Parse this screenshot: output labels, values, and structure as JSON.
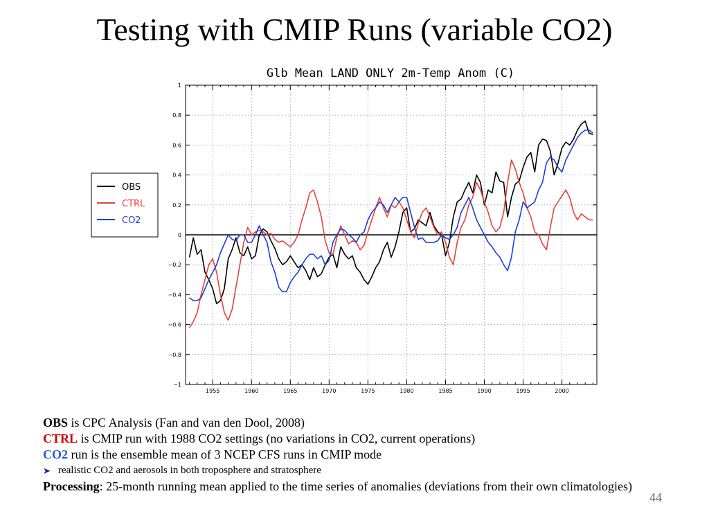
{
  "slide": {
    "title": "Testing with CMIP Runs (variable CO2)",
    "page_number": "44"
  },
  "notes": {
    "obs_term": "OBS",
    "obs_text": " is CPC Analysis (Fan and van den Dool, 2008)",
    "ctrl_term": "CTRL",
    "ctrl_text": " is CMIP run with 1988 CO2 settings (no variations in CO2, current operations)",
    "co2_term": "CO2",
    "co2_text": " run is the ensemble mean of 3 NCEP CFS runs in CMIP mode",
    "bullet_text": "realistic CO2 and aerosols in both troposphere and stratosphere",
    "processing_term": "Processing",
    "processing_text": ": 25-month running mean applied to the time series of anomalies (deviations from their own climatologies)"
  },
  "colors": {
    "obs": "#000000",
    "ctrl": "#e8413c",
    "co2": "#1a3fd6",
    "ctrl_label": "#cc0000",
    "co2_label": "#1f5fd0"
  },
  "chart_data": {
    "type": "line",
    "title": "Glb Mean LAND ONLY 2m-Temp Anom (C)",
    "xlabel": "",
    "ylabel": "",
    "xlim": [
      1951.5,
      2004.5
    ],
    "ylim": [
      -1,
      1
    ],
    "xticks": [
      1955,
      1960,
      1965,
      1970,
      1975,
      1980,
      1985,
      1990,
      1995,
      2000
    ],
    "yticks": [
      -1,
      -0.8,
      -0.6,
      -0.4,
      -0.2,
      0,
      0.2,
      0.4,
      0.6,
      0.8,
      1
    ],
    "ytick_labels": [
      "-1",
      "-0.8",
      "-0.6",
      "-0.4",
      "-0.2",
      "0",
      "0.2",
      "0.4",
      "0.6",
      "0.8",
      "1"
    ],
    "legend_position": "left, outside plot",
    "grid": true,
    "zero_line": true,
    "series": [
      {
        "name": "OBS",
        "color": "#000000",
        "x": [
          1952.0,
          1952.5,
          1953.0,
          1953.5,
          1954.0,
          1954.5,
          1955.0,
          1955.5,
          1956.0,
          1956.5,
          1957.0,
          1957.5,
          1958.0,
          1958.5,
          1959.0,
          1959.5,
          1960.0,
          1960.5,
          1961.0,
          1961.5,
          1962.0,
          1962.5,
          1963.0,
          1963.5,
          1964.0,
          1964.5,
          1965.0,
          1965.5,
          1966.0,
          1966.5,
          1967.0,
          1967.5,
          1968.0,
          1968.5,
          1969.0,
          1969.5,
          1970.0,
          1970.5,
          1971.0,
          1971.5,
          1972.0,
          1972.5,
          1973.0,
          1973.5,
          1974.0,
          1974.5,
          1975.0,
          1975.5,
          1976.0,
          1976.5,
          1977.0,
          1977.5,
          1978.0,
          1978.5,
          1979.0,
          1979.5,
          1980.0,
          1980.5,
          1981.0,
          1981.5,
          1982.0,
          1982.5,
          1983.0,
          1983.5,
          1984.0,
          1984.5,
          1985.0,
          1985.5,
          1986.0,
          1986.5,
          1987.0,
          1987.5,
          1988.0,
          1988.5,
          1989.0,
          1989.5,
          1990.0,
          1990.5,
          1991.0,
          1991.5,
          1992.0,
          1992.5,
          1993.0,
          1993.5,
          1994.0,
          1994.5,
          1995.0,
          1995.5,
          1996.0,
          1996.5,
          1997.0,
          1997.5,
          1998.0,
          1998.5,
          1999.0,
          1999.5,
          2000.0,
          2000.5,
          2001.0,
          2001.5,
          2002.0,
          2002.5,
          2003.0,
          2003.5,
          2004.0
        ],
        "y": [
          -0.15,
          -0.02,
          -0.13,
          -0.1,
          -0.25,
          -0.3,
          -0.36,
          -0.46,
          -0.44,
          -0.36,
          -0.16,
          -0.1,
          -0.02,
          -0.12,
          -0.14,
          -0.08,
          -0.16,
          -0.14,
          0.0,
          0.04,
          0.02,
          -0.04,
          -0.09,
          -0.16,
          -0.2,
          -0.18,
          -0.14,
          -0.18,
          -0.22,
          -0.2,
          -0.24,
          -0.3,
          -0.22,
          -0.28,
          -0.26,
          -0.2,
          -0.15,
          -0.13,
          -0.22,
          -0.08,
          -0.13,
          -0.16,
          -0.14,
          -0.22,
          -0.25,
          -0.3,
          -0.33,
          -0.28,
          -0.22,
          -0.18,
          -0.1,
          -0.05,
          -0.15,
          -0.08,
          0.02,
          0.15,
          0.18,
          0.02,
          0.04,
          0.1,
          0.08,
          0.06,
          0.15,
          0.06,
          0.02,
          0.0,
          -0.14,
          -0.05,
          0.12,
          0.22,
          0.24,
          0.3,
          0.35,
          0.28,
          0.4,
          0.35,
          0.2,
          0.3,
          0.28,
          0.42,
          0.36,
          0.35,
          0.12,
          0.25,
          0.34,
          0.36,
          0.45,
          0.52,
          0.55,
          0.42,
          0.6,
          0.64,
          0.63,
          0.56,
          0.4,
          0.48,
          0.58,
          0.62,
          0.6,
          0.64,
          0.7,
          0.74,
          0.76,
          0.68,
          0.67
        ]
      },
      {
        "name": "CTRL",
        "color": "#e8413c",
        "x": [
          1952.0,
          1952.5,
          1953.0,
          1953.5,
          1954.0,
          1954.5,
          1955.0,
          1955.5,
          1956.0,
          1956.5,
          1957.0,
          1957.5,
          1958.0,
          1958.5,
          1959.0,
          1959.5,
          1960.0,
          1960.5,
          1961.0,
          1961.5,
          1962.0,
          1962.5,
          1963.0,
          1963.5,
          1964.0,
          1964.5,
          1965.0,
          1965.5,
          1966.0,
          1966.5,
          1967.0,
          1967.5,
          1968.0,
          1968.5,
          1969.0,
          1969.5,
          1970.0,
          1970.5,
          1971.0,
          1971.5,
          1972.0,
          1972.5,
          1973.0,
          1973.5,
          1974.0,
          1974.5,
          1975.0,
          1975.5,
          1976.0,
          1976.5,
          1977.0,
          1977.5,
          1978.0,
          1978.5,
          1979.0,
          1979.5,
          1980.0,
          1980.5,
          1981.0,
          1981.5,
          1982.0,
          1982.5,
          1983.0,
          1983.5,
          1984.0,
          1984.5,
          1985.0,
          1985.5,
          1986.0,
          1986.5,
          1987.0,
          1987.5,
          1988.0,
          1988.5,
          1989.0,
          1989.5,
          1990.0,
          1990.5,
          1991.0,
          1991.5,
          1992.0,
          1992.5,
          1993.0,
          1993.5,
          1994.0,
          1994.5,
          1995.0,
          1995.5,
          1996.0,
          1996.5,
          1997.0,
          1997.5,
          1998.0,
          1998.5,
          1999.0,
          1999.5,
          2000.0,
          2000.5,
          2001.0,
          2001.5,
          2002.0,
          2002.5,
          2003.0,
          2003.5,
          2004.0
        ],
        "y": [
          -0.62,
          -0.58,
          -0.52,
          -0.4,
          -0.3,
          -0.2,
          -0.16,
          -0.25,
          -0.4,
          -0.52,
          -0.57,
          -0.5,
          -0.35,
          -0.2,
          -0.05,
          0.05,
          0.0,
          0.02,
          0.03,
          0.02,
          0.0,
          0.01,
          -0.03,
          -0.05,
          -0.04,
          -0.06,
          -0.08,
          -0.05,
          0.0,
          0.1,
          0.18,
          0.28,
          0.3,
          0.22,
          0.12,
          -0.04,
          -0.12,
          -0.13,
          -0.02,
          0.06,
          0.0,
          -0.06,
          -0.04,
          -0.05,
          -0.1,
          -0.07,
          0.02,
          0.1,
          0.18,
          0.25,
          0.18,
          0.12,
          0.2,
          0.18,
          0.22,
          0.18,
          0.1,
          0.02,
          -0.02,
          0.08,
          0.15,
          0.18,
          0.12,
          0.05,
          0.0,
          0.02,
          -0.05,
          -0.15,
          -0.2,
          -0.05,
          0.05,
          0.1,
          0.2,
          0.25,
          0.35,
          0.3,
          0.22,
          0.15,
          0.06,
          0.02,
          0.05,
          0.15,
          0.35,
          0.5,
          0.44,
          0.35,
          0.28,
          0.18,
          0.12,
          0.02,
          0.0,
          -0.06,
          -0.1,
          0.05,
          0.18,
          0.22,
          0.26,
          0.3,
          0.25,
          0.15,
          0.1,
          0.14,
          0.12,
          0.1,
          0.1
        ]
      },
      {
        "name": "CO2",
        "color": "#1a3fd6",
        "x": [
          1952.0,
          1952.5,
          1953.0,
          1953.5,
          1954.0,
          1954.5,
          1955.0,
          1955.5,
          1956.0,
          1956.5,
          1957.0,
          1957.5,
          1958.0,
          1958.5,
          1959.0,
          1959.5,
          1960.0,
          1960.5,
          1961.0,
          1961.5,
          1962.0,
          1962.5,
          1963.0,
          1963.5,
          1964.0,
          1964.5,
          1965.0,
          1965.5,
          1966.0,
          1966.5,
          1967.0,
          1967.5,
          1968.0,
          1968.5,
          1969.0,
          1969.5,
          1970.0,
          1970.5,
          1971.0,
          1971.5,
          1972.0,
          1972.5,
          1973.0,
          1973.5,
          1974.0,
          1974.5,
          1975.0,
          1975.5,
          1976.0,
          1976.5,
          1977.0,
          1977.5,
          1978.0,
          1978.5,
          1979.0,
          1979.5,
          1980.0,
          1980.5,
          1981.0,
          1981.5,
          1982.0,
          1982.5,
          1983.0,
          1983.5,
          1984.0,
          1984.5,
          1985.0,
          1985.5,
          1986.0,
          1986.5,
          1987.0,
          1987.5,
          1988.0,
          1988.5,
          1989.0,
          1989.5,
          1990.0,
          1990.5,
          1991.0,
          1991.5,
          1992.0,
          1992.5,
          1993.0,
          1993.5,
          1994.0,
          1994.5,
          1995.0,
          1995.5,
          1996.0,
          1996.5,
          1997.0,
          1997.5,
          1998.0,
          1998.5,
          1999.0,
          1999.5,
          2000.0,
          2000.5,
          2001.0,
          2001.5,
          2002.0,
          2002.5,
          2003.0,
          2003.5,
          2004.0
        ],
        "y": [
          -0.42,
          -0.44,
          -0.44,
          -0.42,
          -0.36,
          -0.3,
          -0.25,
          -0.2,
          -0.12,
          -0.06,
          0.0,
          -0.03,
          -0.04,
          0.0,
          0.0,
          -0.05,
          -0.05,
          0.0,
          0.06,
          0.0,
          -0.05,
          -0.18,
          -0.25,
          -0.35,
          -0.38,
          -0.38,
          -0.32,
          -0.28,
          -0.25,
          -0.2,
          -0.16,
          -0.13,
          -0.13,
          -0.16,
          -0.14,
          -0.2,
          -0.17,
          -0.05,
          0.0,
          0.04,
          0.03,
          0.0,
          -0.02,
          -0.05,
          0.0,
          0.02,
          0.1,
          0.15,
          0.18,
          0.22,
          0.2,
          0.15,
          0.2,
          0.25,
          0.22,
          0.25,
          0.25,
          0.15,
          0.05,
          -0.03,
          -0.02,
          -0.05,
          -0.05,
          -0.05,
          -0.04,
          0.0,
          -0.02,
          -0.03,
          0.0,
          0.05,
          0.15,
          0.2,
          0.25,
          0.18,
          0.1,
          0.05,
          0.0,
          -0.05,
          -0.08,
          -0.12,
          -0.15,
          -0.2,
          -0.24,
          -0.15,
          0.02,
          0.1,
          0.22,
          0.18,
          0.2,
          0.22,
          0.3,
          0.35,
          0.48,
          0.52,
          0.5,
          0.45,
          0.42,
          0.5,
          0.55,
          0.6,
          0.65,
          0.68,
          0.7,
          0.7,
          0.68
        ]
      }
    ]
  }
}
